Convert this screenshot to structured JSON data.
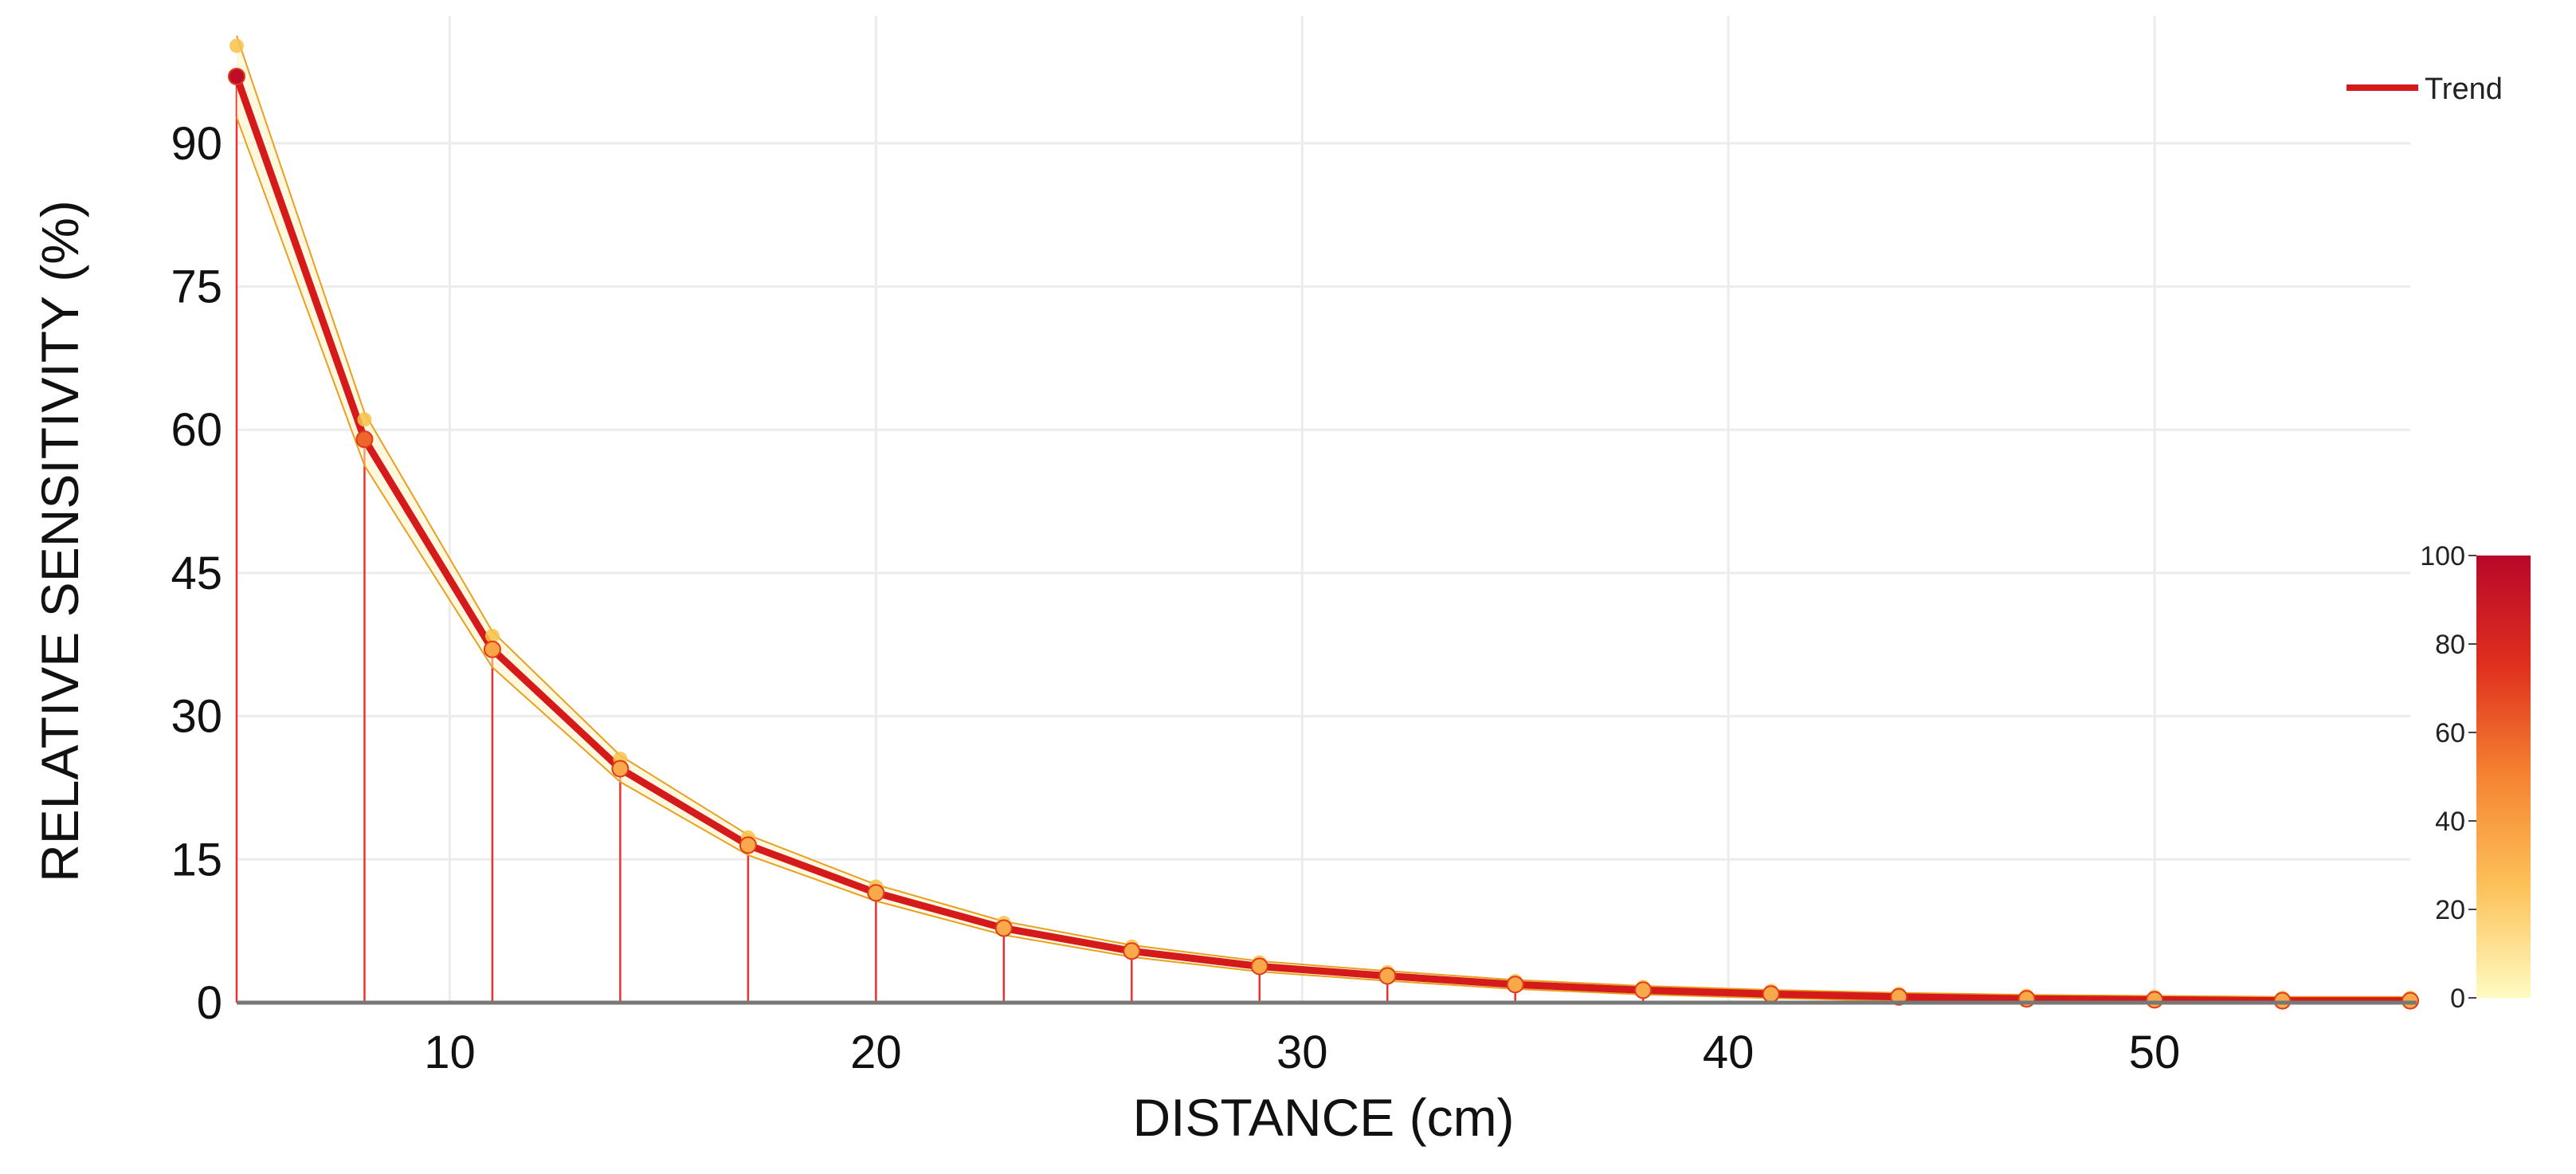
{
  "chart_data": {
    "type": "line",
    "xlabel": "DISTANCE (cm)",
    "ylabel": "RELATIVE SENSITIVITY (%)",
    "xlim": [
      5,
      56
    ],
    "ylim": [
      0,
      100
    ],
    "x_ticks": [
      10,
      20,
      30,
      40,
      50
    ],
    "y_ticks": [
      0,
      15,
      30,
      45,
      60,
      75,
      90
    ],
    "grid": true,
    "legend_position": "top-right",
    "series": [
      {
        "name": "Trend",
        "color": "#d41a1a",
        "x": [
          5,
          8,
          11,
          14,
          17,
          20,
          23,
          26,
          29,
          32,
          35,
          38,
          41,
          44,
          47,
          50,
          53,
          56
        ],
        "y": [
          97,
          59,
          37,
          24.5,
          16.5,
          11.5,
          7.8,
          5.4,
          3.8,
          2.8,
          1.9,
          1.3,
          0.9,
          0.6,
          0.4,
          0.3,
          0.2,
          0.2
        ]
      }
    ],
    "colorbar": {
      "range": [
        0,
        100
      ],
      "ticks": [
        0,
        20,
        40,
        60,
        80,
        100
      ],
      "colors": [
        "#fffbc2",
        "#fdc25a",
        "#f58432",
        "#e0301e",
        "#b8082a"
      ]
    }
  }
}
